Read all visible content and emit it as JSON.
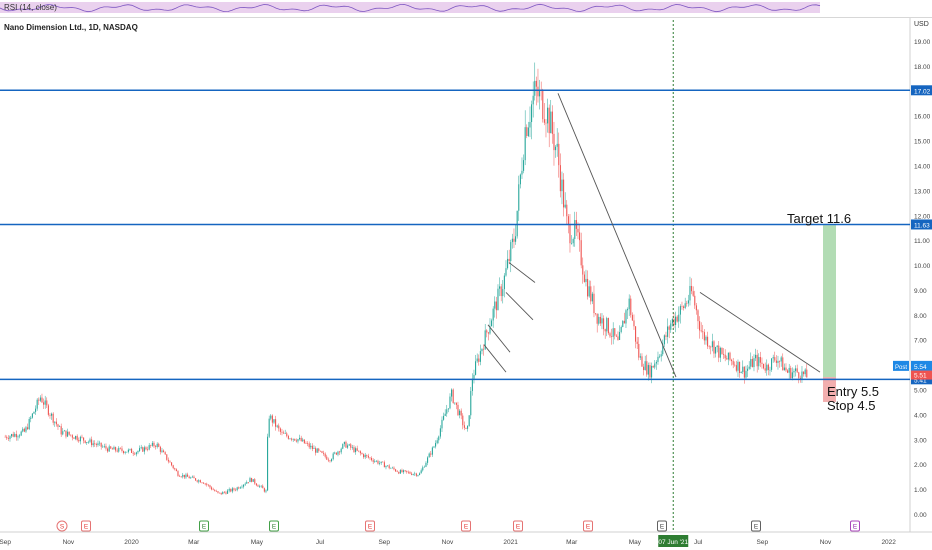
{
  "indicator": {
    "label": "RSI (14, close)"
  },
  "header": {
    "title": "Nano Dimension Ltd., 1D, NASDAQ"
  },
  "price_axis": {
    "unit": "USD",
    "ticks": [
      "19.00",
      "18.00",
      "17.00",
      "16.00",
      "15.00",
      "14.00",
      "13.00",
      "12.00",
      "11.00",
      "10.00",
      "9.00",
      "8.00",
      "7.00",
      "6.00",
      "5.00",
      "4.00",
      "3.00",
      "2.00",
      "1.00",
      "0.00"
    ],
    "tick_values": [
      19,
      18,
      17,
      16,
      15,
      14,
      13,
      12,
      11,
      10,
      9,
      8,
      7,
      6,
      5,
      4,
      3,
      2,
      1,
      0
    ]
  },
  "time_axis": {
    "labels": [
      "Sep",
      "Nov",
      "2020",
      "Mar",
      "May",
      "Jul",
      "Sep",
      "Nov",
      "2021",
      "Mar",
      "May",
      "Jul",
      "Sep",
      "Nov",
      "2022"
    ],
    "crosshair_date": "07 Jun '21"
  },
  "levels": [
    {
      "value": 17.02,
      "label": "17.02"
    },
    {
      "value": 11.63,
      "label": "11.63"
    },
    {
      "value": 5.41,
      "label": "5.41"
    }
  ],
  "price_labels": [
    {
      "label": "Post",
      "value": "5.54"
    },
    {
      "label": "",
      "value": "5.51"
    }
  ],
  "annotations": {
    "target": "Target 11.6",
    "entry": "Entry 5.5",
    "stop": "Stop 4.5"
  },
  "event_markers": [
    {
      "code": "S",
      "kind": "split"
    },
    {
      "code": "E",
      "kind": "earnings-past"
    },
    {
      "code": "E",
      "kind": "earnings-positive"
    },
    {
      "code": "E",
      "kind": "earnings-positive"
    },
    {
      "code": "E",
      "kind": "earnings-past"
    },
    {
      "code": "E",
      "kind": "earnings-past"
    },
    {
      "code": "E",
      "kind": "earnings-past"
    },
    {
      "code": "E",
      "kind": "earnings-past"
    },
    {
      "code": "E",
      "kind": "earnings-neutral"
    },
    {
      "code": "E",
      "kind": "earnings-neutral"
    },
    {
      "code": "E",
      "kind": "earnings-upcoming"
    }
  ],
  "colors": {
    "level_line": "#1565c0",
    "up": "#26a69a",
    "down": "#ef5350",
    "trendline": "#555555",
    "target_zone": "#a5d6a7",
    "crosshair": "#2e7d32",
    "rsi_band": "#e1bee7"
  },
  "chart_data": {
    "type": "line",
    "title": "Nano Dimension Ltd., 1D, NASDAQ",
    "ylabel": "USD",
    "ylim": [
      -0.3,
      19.6
    ],
    "grid": false,
    "series": [
      {
        "name": "",
        "x": [
          "2019-09-01",
          "2019-09-20",
          "2019-10-05",
          "2019-10-25",
          "2019-11-15",
          "2019-12-10",
          "2020-01-05",
          "2020-01-25",
          "2020-02-15",
          "2020-03-10",
          "2020-03-25",
          "2020-04-10",
          "2020-04-25",
          "2020-05-10",
          "2020-05-12",
          "2020-05-25",
          "2020-06-10",
          "2020-06-25",
          "2020-07-10",
          "2020-07-25",
          "2020-08-10",
          "2020-08-25",
          "2020-09-15",
          "2020-10-05",
          "2020-10-20",
          "2020-11-05",
          "2020-11-20",
          "2020-11-25",
          "2020-12-05",
          "2020-12-15",
          "2020-12-25",
          "2021-01-05",
          "2021-01-15",
          "2021-01-25",
          "2021-02-05",
          "2021-02-15",
          "2021-02-25",
          "2021-03-05",
          "2021-03-15",
          "2021-03-25",
          "2021-04-05",
          "2021-04-15",
          "2021-04-25",
          "2021-05-05",
          "2021-05-15",
          "2021-05-25",
          "2021-06-05",
          "2021-06-15",
          "2021-06-25",
          "2021-07-05",
          "2021-07-15",
          "2021-07-25",
          "2021-08-05",
          "2021-08-15",
          "2021-08-25",
          "2021-09-05",
          "2021-09-15",
          "2021-09-25",
          "2021-10-05",
          "2021-10-15"
        ],
        "y": [
          3.1,
          3.3,
          4.7,
          3.3,
          3.0,
          2.6,
          2.5,
          2.8,
          1.6,
          1.3,
          0.8,
          1.0,
          1.4,
          0.9,
          4.0,
          3.2,
          3.0,
          2.6,
          2.2,
          2.8,
          2.4,
          2.1,
          1.7,
          1.6,
          2.8,
          4.8,
          3.2,
          5.5,
          6.8,
          8.1,
          9.3,
          11.2,
          15.5,
          17.0,
          16.2,
          14.5,
          11.4,
          11.3,
          9.3,
          8.0,
          7.5,
          6.8,
          8.6,
          6.3,
          5.7,
          6.5,
          7.7,
          8.2,
          8.9,
          7.2,
          6.8,
          6.3,
          6.1,
          5.7,
          6.2,
          5.9,
          6.3,
          5.7,
          5.7,
          5.5
        ]
      }
    ]
  }
}
